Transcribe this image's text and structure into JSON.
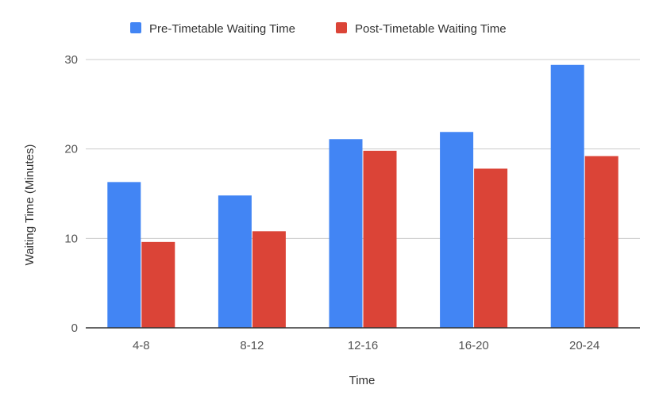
{
  "chart_data": {
    "type": "bar",
    "title": "",
    "xlabel": "Time",
    "ylabel": "Waiting Time (Minutes)",
    "categories": [
      "4-8",
      "8-12",
      "12-16",
      "16-20",
      "20-24"
    ],
    "series": [
      {
        "name": "Pre-Timetable Waiting Time",
        "color": "#4285f4",
        "values": [
          16.3,
          14.8,
          21.1,
          21.9,
          29.4
        ]
      },
      {
        "name": "Post-Timetable Waiting Time",
        "color": "#db4437",
        "values": [
          9.6,
          10.8,
          19.8,
          17.8,
          19.2
        ]
      }
    ],
    "ylim": [
      0,
      30
    ],
    "yticks": [
      0,
      10,
      20,
      30
    ],
    "grid": true,
    "legend_position": "top-center"
  }
}
